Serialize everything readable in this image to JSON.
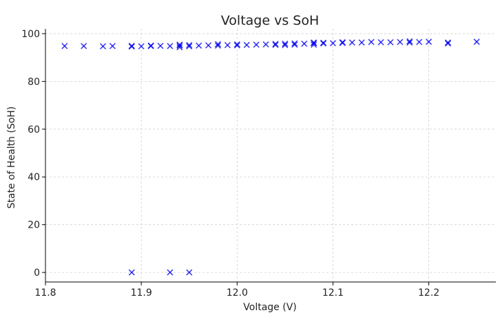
{
  "chart_data": {
    "type": "scatter",
    "title": "Voltage vs SoH",
    "xlabel": "Voltage (V)",
    "ylabel": "State of Health (SoH)",
    "xlim": [
      11.8,
      12.27
    ],
    "ylim": [
      -4,
      102
    ],
    "xticks": [
      11.8,
      11.9,
      12.0,
      12.1,
      12.2
    ],
    "xtick_labels": [
      "11.8",
      "11.9",
      "12.0",
      "12.1",
      "12.2"
    ],
    "yticks": [
      0,
      20,
      40,
      60,
      80,
      100
    ],
    "ytick_labels": [
      "0",
      "20",
      "40",
      "60",
      "80",
      "100"
    ],
    "grid": true,
    "marker": "x",
    "color": "#0000ee",
    "series": [
      {
        "x": [
          11.82,
          11.84,
          11.86,
          11.87,
          11.89,
          11.89,
          11.9,
          11.91,
          11.91,
          11.92,
          11.93,
          11.94,
          11.94,
          11.94,
          11.95,
          11.95,
          11.96,
          11.97,
          11.98,
          11.98,
          11.99,
          12.0,
          12.0,
          12.01,
          12.02,
          12.03,
          12.04,
          12.04,
          12.05,
          12.05,
          12.06,
          12.06,
          12.07,
          12.08,
          12.08,
          12.08,
          12.09,
          12.09,
          12.1,
          12.11,
          12.11,
          12.12,
          12.13,
          12.14,
          12.15,
          12.16,
          12.17,
          12.18,
          12.18,
          12.19,
          12.2,
          12.22,
          12.22,
          12.25,
          11.89,
          11.93,
          11.95
        ],
        "y": [
          94.8,
          94.8,
          94.7,
          94.8,
          94.6,
          94.9,
          94.7,
          95.0,
          94.8,
          94.9,
          94.8,
          94.3,
          95.0,
          95.4,
          94.7,
          95.2,
          95.0,
          95.1,
          95.0,
          95.6,
          95.2,
          95.1,
          95.5,
          95.3,
          95.4,
          95.5,
          95.3,
          95.7,
          95.2,
          95.8,
          95.4,
          95.9,
          95.8,
          95.4,
          96.0,
          96.3,
          95.9,
          96.2,
          96.0,
          96.1,
          96.4,
          96.3,
          96.3,
          96.5,
          96.4,
          96.4,
          96.5,
          96.3,
          96.8,
          96.5,
          96.6,
          95.9,
          96.3,
          96.6,
          0,
          0,
          0
        ]
      }
    ]
  }
}
